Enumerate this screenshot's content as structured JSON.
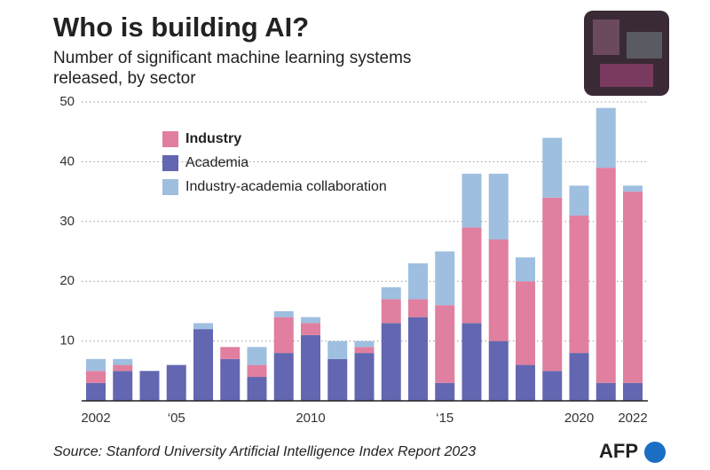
{
  "chart_data": {
    "type": "stacked-bar",
    "title": "Who is building AI?",
    "subtitle": [
      "Number of significant machine learning systems",
      "released, by sector"
    ],
    "source": "Source: Stanford University Artificial Intelligence Index Report 2023",
    "credit": "AFP",
    "categories": [
      "2002",
      null,
      null,
      "‘05",
      null,
      null,
      null,
      null,
      "2010",
      null,
      null,
      null,
      null,
      "‘15",
      null,
      null,
      null,
      null,
      "2020",
      null,
      "2022"
    ],
    "series": [
      {
        "name": "Academia",
        "color": "#6367b1",
        "values": [
          3,
          5,
          5,
          6,
          12,
          7,
          4,
          8,
          11,
          7,
          8,
          13,
          14,
          3,
          13,
          10,
          6,
          5,
          8,
          3,
          3
        ]
      },
      {
        "name": "Industry",
        "color": "#e07f9f",
        "values": [
          2,
          1,
          0,
          0,
          0,
          2,
          2,
          6,
          2,
          0,
          1,
          4,
          3,
          13,
          16,
          17,
          14,
          29,
          23,
          36,
          32
        ]
      },
      {
        "name": "Industry-academia collaboration",
        "color": "#9ebfdf",
        "values": [
          2,
          1,
          0,
          0,
          1,
          0,
          3,
          1,
          1,
          3,
          1,
          2,
          6,
          9,
          9,
          11,
          4,
          10,
          5,
          10,
          1
        ]
      }
    ],
    "legend_order": [
      1,
      0,
      2
    ],
    "ylim": [
      0,
      50
    ],
    "yticks": [
      10,
      20,
      30,
      40,
      50
    ],
    "grid": true
  }
}
